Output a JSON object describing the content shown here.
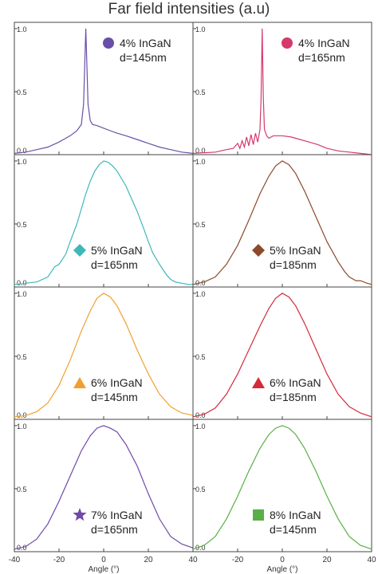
{
  "title": "Far field intensities (a.u)",
  "xlabel": "Angle (°)",
  "chart_data": {
    "type": "line",
    "layout": "4x2 grid",
    "xlim": [
      -40,
      40
    ],
    "ylim": [
      0,
      1.05
    ],
    "y_ticks": [
      "0.0",
      "0.5",
      "1.0"
    ],
    "x_ticks": [
      "-40",
      "-20",
      "0",
      "20",
      "40"
    ],
    "panels": [
      {
        "label_line1": "4% InGaN",
        "label_line2": "d=145nm",
        "marker": "circle",
        "color": "#6a4fa8",
        "x": [
          -40,
          -35,
          -30,
          -25,
          -20,
          -18,
          -15,
          -12,
          -10,
          -9,
          -8.5,
          -8,
          -7.5,
          -7,
          -6,
          -5,
          -3,
          0,
          3,
          6,
          10,
          15,
          20,
          25,
          30,
          35,
          40
        ],
        "y": [
          0.01,
          0.02,
          0.04,
          0.06,
          0.1,
          0.12,
          0.15,
          0.19,
          0.24,
          0.4,
          0.7,
          1.0,
          0.7,
          0.4,
          0.27,
          0.24,
          0.23,
          0.21,
          0.19,
          0.17,
          0.15,
          0.12,
          0.09,
          0.06,
          0.04,
          0.02,
          0.01
        ]
      },
      {
        "label_line1": "4% InGaN",
        "label_line2": "d=165nm",
        "marker": "circle",
        "color": "#d63a6a",
        "x": [
          -40,
          -30,
          -25,
          -22,
          -20,
          -19,
          -18,
          -17,
          -16,
          -15,
          -14,
          -13,
          -12,
          -11,
          -10,
          -9.5,
          -9,
          -8.5,
          -8,
          -7,
          -6,
          -4,
          0,
          4,
          8,
          12,
          16,
          20,
          25,
          30,
          35,
          40
        ],
        "y": [
          0.01,
          0.02,
          0.04,
          0.05,
          0.09,
          0.05,
          0.11,
          0.06,
          0.14,
          0.07,
          0.16,
          0.08,
          0.17,
          0.1,
          0.2,
          0.45,
          1.0,
          0.45,
          0.2,
          0.15,
          0.13,
          0.15,
          0.15,
          0.14,
          0.12,
          0.1,
          0.08,
          0.05,
          0.03,
          0.02,
          0.01,
          0.0
        ]
      },
      {
        "label_line1": "5% InGaN",
        "label_line2": "d=165nm",
        "marker": "diamond",
        "color": "#3fb8b8",
        "x": [
          -40,
          -35,
          -30,
          -25,
          -22,
          -20,
          -17,
          -15,
          -12,
          -10,
          -8,
          -6,
          -4,
          -2,
          0,
          2,
          4,
          6,
          8,
          10,
          12,
          15,
          18,
          20,
          22,
          25,
          28,
          30,
          32,
          35,
          38,
          40
        ],
        "y": [
          0.02,
          0.03,
          0.04,
          0.08,
          0.16,
          0.18,
          0.26,
          0.36,
          0.5,
          0.62,
          0.74,
          0.84,
          0.92,
          0.97,
          1.0,
          0.99,
          0.96,
          0.92,
          0.86,
          0.8,
          0.72,
          0.6,
          0.46,
          0.36,
          0.27,
          0.18,
          0.1,
          0.06,
          0.04,
          0.03,
          0.02,
          0.02
        ]
      },
      {
        "label_line1": "5% InGaN",
        "label_line2": "d=185nm",
        "marker": "diamond",
        "color": "#8b4a2b",
        "x": [
          -40,
          -35,
          -30,
          -25,
          -20,
          -15,
          -10,
          -6,
          -3,
          0,
          3,
          6,
          10,
          15,
          20,
          25,
          28,
          30,
          33,
          35,
          38,
          40
        ],
        "y": [
          0.02,
          0.04,
          0.08,
          0.18,
          0.33,
          0.53,
          0.74,
          0.88,
          0.96,
          1.0,
          0.97,
          0.9,
          0.76,
          0.56,
          0.36,
          0.2,
          0.12,
          0.08,
          0.05,
          0.05,
          0.03,
          0.02
        ]
      },
      {
        "label_line1": "6% InGaN",
        "label_line2": "d=145nm",
        "marker": "triangle",
        "color": "#f0a030",
        "x": [
          -40,
          -35,
          -30,
          -25,
          -20,
          -15,
          -10,
          -6,
          -3,
          0,
          3,
          6,
          10,
          15,
          20,
          25,
          30,
          35,
          38,
          40
        ],
        "y": [
          0.02,
          0.03,
          0.06,
          0.13,
          0.27,
          0.47,
          0.7,
          0.86,
          0.96,
          1.0,
          0.97,
          0.9,
          0.76,
          0.55,
          0.36,
          0.2,
          0.1,
          0.05,
          0.04,
          0.03
        ]
      },
      {
        "label_line1": "6% InGaN",
        "label_line2": "d=185nm",
        "marker": "triangle",
        "color": "#d42a3a",
        "x": [
          -40,
          -35,
          -30,
          -25,
          -20,
          -15,
          -10,
          -6,
          -3,
          0,
          3,
          6,
          10,
          15,
          20,
          25,
          30,
          35,
          40
        ],
        "y": [
          0.02,
          0.04,
          0.09,
          0.2,
          0.36,
          0.55,
          0.74,
          0.88,
          0.96,
          1.0,
          0.97,
          0.9,
          0.76,
          0.56,
          0.36,
          0.2,
          0.1,
          0.05,
          0.02
        ]
      },
      {
        "label_line1": "7% InGaN",
        "label_line2": "d=165nm",
        "marker": "star",
        "color": "#7048a8",
        "x": [
          -40,
          -35,
          -30,
          -25,
          -20,
          -15,
          -10,
          -6,
          -3,
          0,
          3,
          6,
          10,
          15,
          20,
          25,
          30,
          35,
          40
        ],
        "y": [
          0.02,
          0.04,
          0.1,
          0.22,
          0.4,
          0.6,
          0.8,
          0.92,
          0.98,
          1.0,
          0.98,
          0.95,
          0.85,
          0.68,
          0.46,
          0.26,
          0.12,
          0.06,
          0.03
        ]
      },
      {
        "label_line1": "8% InGaN",
        "label_line2": "d=145nm",
        "marker": "square",
        "color": "#5ab046",
        "x": [
          -40,
          -35,
          -30,
          -25,
          -20,
          -15,
          -10,
          -6,
          -3,
          0,
          3,
          6,
          10,
          15,
          20,
          25,
          30,
          35,
          40
        ],
        "y": [
          0.02,
          0.05,
          0.12,
          0.26,
          0.44,
          0.64,
          0.82,
          0.93,
          0.98,
          1.0,
          0.98,
          0.93,
          0.82,
          0.64,
          0.44,
          0.26,
          0.12,
          0.05,
          0.02
        ]
      }
    ]
  }
}
